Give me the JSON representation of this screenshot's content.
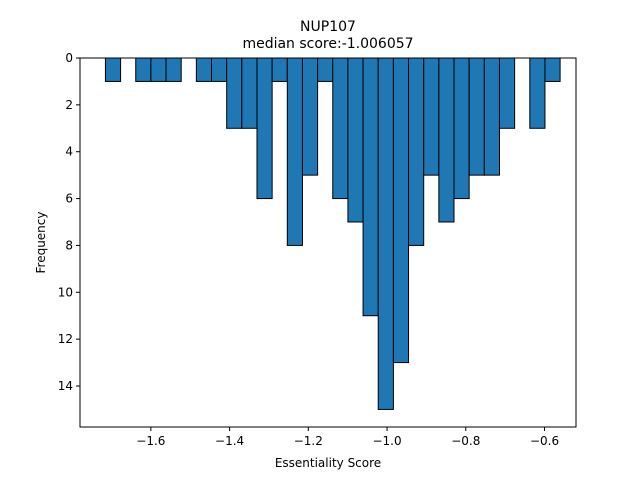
{
  "chart_data": {
    "type": "bar",
    "title": "NUP107",
    "subtitle": "median score:-1.006057",
    "xlabel": "Essentiality Score",
    "ylabel": "Frequency",
    "xlim": [
      -1.78,
      -0.52
    ],
    "ylim": [
      15.75,
      0
    ],
    "y_axis_inverted": true,
    "grid": false,
    "bar_color": "#1f77b4",
    "edge_color": "#000000",
    "bin_width": 0.0385,
    "x_ticks": [
      -1.6,
      -1.4,
      -1.2,
      -1.0,
      -0.8,
      -0.6
    ],
    "x_tick_labels": [
      "−1.6",
      "−1.4",
      "−1.2",
      "−1.0",
      "−0.8",
      "−0.6"
    ],
    "y_ticks": [
      0,
      2,
      4,
      6,
      8,
      10,
      12,
      14
    ],
    "y_tick_labels": [
      "0",
      "2",
      "4",
      "6",
      "8",
      "10",
      "12",
      "14"
    ],
    "bins": [
      {
        "x0": -1.7154,
        "y": 1
      },
      {
        "x0": -1.6384,
        "y": 1
      },
      {
        "x0": -1.5999,
        "y": 1
      },
      {
        "x0": -1.5614,
        "y": 1
      },
      {
        "x0": -1.4844,
        "y": 1
      },
      {
        "x0": -1.4459,
        "y": 1
      },
      {
        "x0": -1.4074,
        "y": 3
      },
      {
        "x0": -1.3689,
        "y": 3
      },
      {
        "x0": -1.3304,
        "y": 6
      },
      {
        "x0": -1.2919,
        "y": 1
      },
      {
        "x0": -1.2534,
        "y": 8
      },
      {
        "x0": -1.2149,
        "y": 5
      },
      {
        "x0": -1.1764,
        "y": 1
      },
      {
        "x0": -1.1379,
        "y": 6
      },
      {
        "x0": -1.0994,
        "y": 7
      },
      {
        "x0": -1.0609,
        "y": 11
      },
      {
        "x0": -1.0224,
        "y": 15
      },
      {
        "x0": -0.9839,
        "y": 13
      },
      {
        "x0": -0.9454,
        "y": 8
      },
      {
        "x0": -0.9069,
        "y": 5
      },
      {
        "x0": -0.8684,
        "y": 7
      },
      {
        "x0": -0.8299,
        "y": 6
      },
      {
        "x0": -0.7914,
        "y": 5
      },
      {
        "x0": -0.7529,
        "y": 5
      },
      {
        "x0": -0.7144,
        "y": 3
      },
      {
        "x0": -0.6374,
        "y": 3
      },
      {
        "x0": -0.5989,
        "y": 1
      }
    ]
  }
}
